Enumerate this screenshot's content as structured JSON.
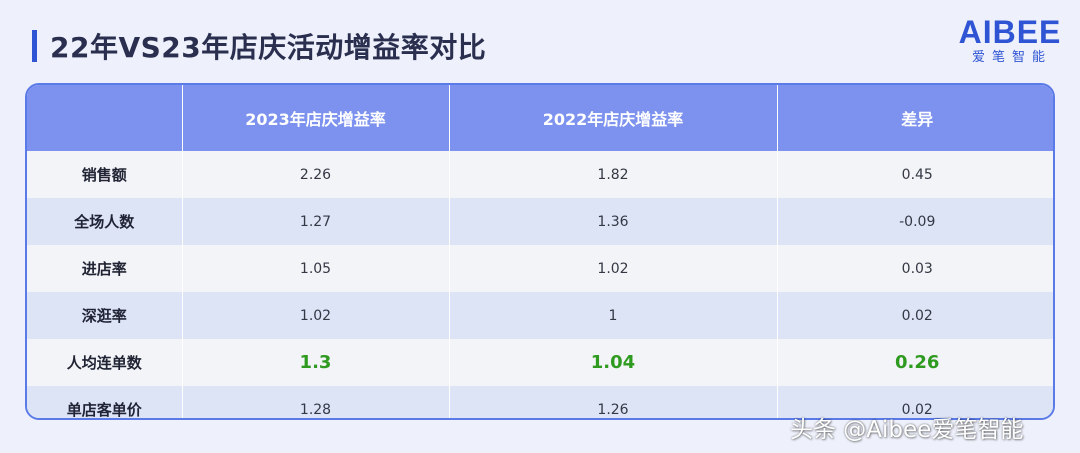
{
  "title": "22年VS23年店庆活动增益率对比",
  "logo": {
    "mark": "AIBEE",
    "sub": "爱笔智能"
  },
  "watermark": "头条 @Aibee爱笔智能",
  "colors": {
    "accent": "#2f55d4",
    "header": "#7d92ee",
    "highlight": "#2e9a1f"
  },
  "chart_data": {
    "type": "table",
    "columns": [
      "",
      "2023年店庆增益率",
      "2022年店庆增益率",
      "差异"
    ],
    "rows": [
      {
        "label": "销售额",
        "values": [
          "2.26",
          "1.82",
          "0.45"
        ],
        "highlight": false
      },
      {
        "label": "全场人数",
        "values": [
          "1.27",
          "1.36",
          "-0.09"
        ],
        "highlight": false
      },
      {
        "label": "进店率",
        "values": [
          "1.05",
          "1.02",
          "0.03"
        ],
        "highlight": false
      },
      {
        "label": "深逛率",
        "values": [
          "1.02",
          "1",
          "0.02"
        ],
        "highlight": false
      },
      {
        "label": "人均连单数",
        "values": [
          "1.3",
          "1.04",
          "0.26"
        ],
        "highlight": true
      },
      {
        "label": "单店客单价",
        "values": [
          "1.28",
          "1.26",
          "0.02"
        ],
        "highlight": false
      }
    ]
  }
}
